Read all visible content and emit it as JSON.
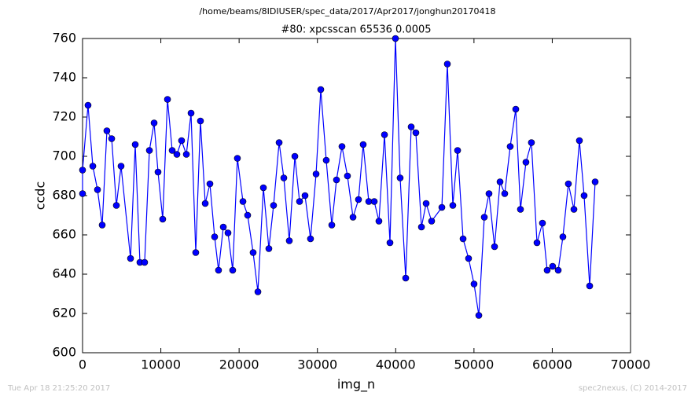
{
  "chart_data": {
    "type": "line",
    "suptitle": "/home/beams/8IDIUSER/spec_data/2017/Apr2017/jonghun20170418",
    "title": "#80: xpcsscan 65536 0.0005",
    "xlabel": "img_n",
    "ylabel": "ccdc",
    "footer_left": "Tue Apr 18 21:25:20 2017",
    "footer_right": "spec2nexus, (C) 2014-2017",
    "color": "#0000ff",
    "xlim": [
      0,
      70000
    ],
    "xticks": [
      0,
      10000,
      20000,
      30000,
      40000,
      50000,
      60000,
      70000
    ],
    "ylim": [
      600,
      760
    ],
    "yticks": [
      600,
      620,
      640,
      660,
      680,
      700,
      720,
      740,
      760
    ],
    "x": [
      0,
      0,
      700,
      1310,
      1910,
      2510,
      3110,
      3720,
      4320,
      4920,
      6130,
      6730,
      7330,
      7930,
      8540,
      9140,
      9640,
      10240,
      10850,
      11450,
      12050,
      12650,
      13260,
      13860,
      14460,
      15060,
      15670,
      16270,
      16870,
      17370,
      17980,
      18580,
      19180,
      19780,
      20490,
      21090,
      21790,
      22400,
      23100,
      23800,
      24400,
      25110,
      25710,
      26410,
      27120,
      27720,
      28420,
      29120,
      29830,
      30430,
      31130,
      31840,
      32440,
      33140,
      33840,
      34550,
      35250,
      35850,
      36560,
      37260,
      37860,
      38570,
      39270,
      39970,
      40570,
      41280,
      41980,
      42580,
      43290,
      43890,
      44590,
      45900,
      46600,
      47300,
      47910,
      48610,
      49310,
      50010,
      50620,
      51320,
      51920,
      52630,
      53330,
      53930,
      54630,
      55340,
      55940,
      56640,
      57340,
      58050,
      58750,
      59350,
      60050,
      60760,
      61360,
      62060,
      62770,
      63470,
      64070,
      64780,
      65480
    ],
    "values": [
      681,
      693,
      726,
      695,
      683,
      665,
      713,
      709,
      675,
      695,
      648,
      706,
      646,
      646,
      703,
      717,
      692,
      668,
      729,
      703,
      701,
      708,
      701,
      722,
      651,
      718,
      676,
      686,
      659,
      642,
      664,
      661,
      642,
      699,
      677,
      670,
      651,
      631,
      684,
      653,
      675,
      707,
      689,
      657,
      700,
      677,
      680,
      658,
      691,
      734,
      698,
      665,
      688,
      705,
      690,
      669,
      678,
      706,
      677,
      677,
      667,
      711,
      656,
      760,
      689,
      638,
      715,
      712,
      664,
      676,
      667,
      674,
      747,
      675,
      703,
      658,
      648,
      635,
      619,
      669,
      681,
      654,
      687,
      681,
      705,
      724,
      673,
      697,
      707,
      656,
      666,
      642,
      644,
      642,
      659,
      686,
      673,
      708,
      680,
      634,
      687
    ]
  }
}
